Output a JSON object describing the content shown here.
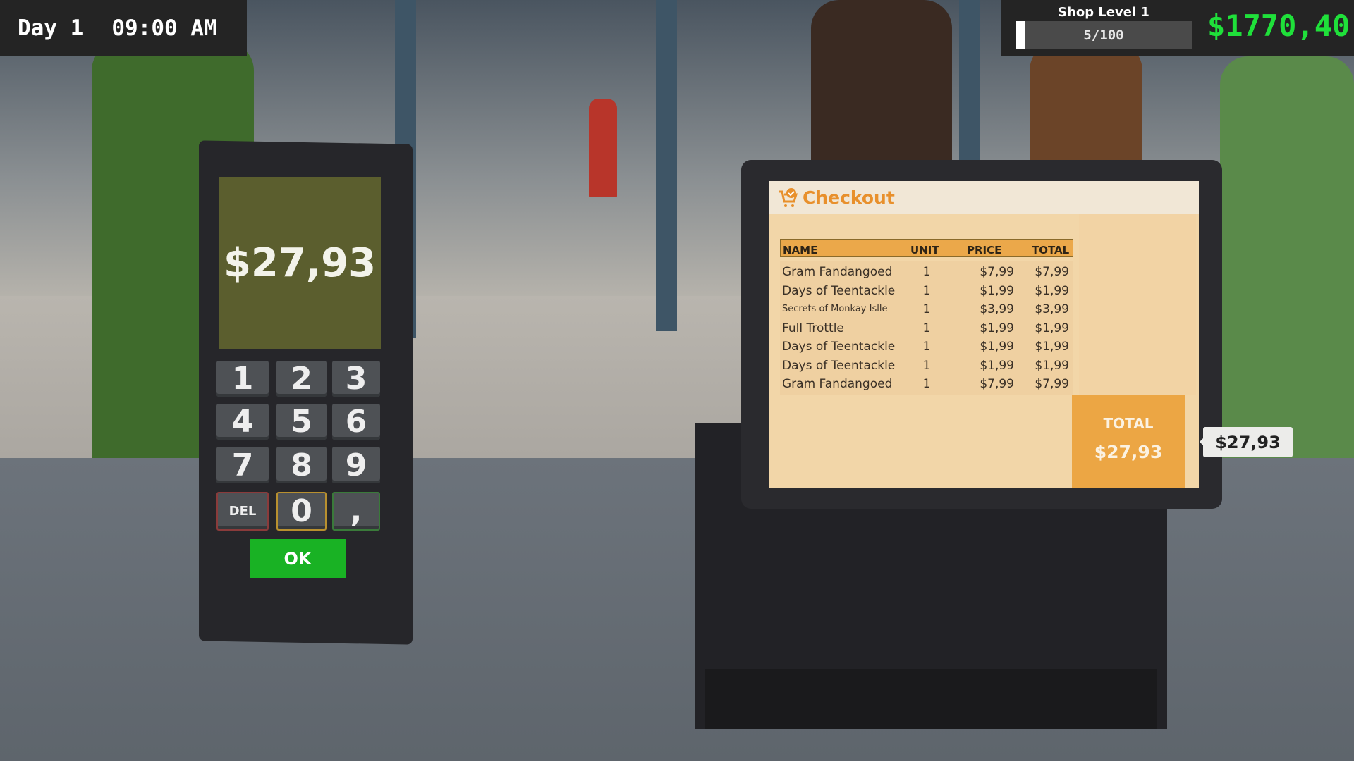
{
  "hud": {
    "day": "Day 1",
    "time": "09:00 AM",
    "shop_level_label": "Shop Level 1",
    "level_progress_text": "5/100",
    "level_progress_fraction": 0.05,
    "money": "$1770,40"
  },
  "terminal": {
    "display": "$27,93",
    "keys": [
      "1",
      "2",
      "3",
      "4",
      "5",
      "6",
      "7",
      "8",
      "9",
      "DEL",
      "0",
      ","
    ],
    "ok_label": "OK"
  },
  "checkout": {
    "title": "Checkout",
    "icon": "cart-check-icon",
    "columns": [
      "NAME",
      "UNIT",
      "PRICE",
      "TOTAL"
    ],
    "rows": [
      [
        "Gram Fandangoed",
        "1",
        "$7,99",
        "$7,99"
      ],
      [
        "Days of Teentackle",
        "1",
        "$1,99",
        "$1,99"
      ],
      [
        "Secrets of Monkay Islle",
        "1",
        "$3,99",
        "$3,99"
      ],
      [
        "Full Trottle",
        "1",
        "$1,99",
        "$1,99"
      ],
      [
        "Days of Teentackle",
        "1",
        "$1,99",
        "$1,99"
      ],
      [
        "Days of Teentackle",
        "1",
        "$1,99",
        "$1,99"
      ],
      [
        "Gram Fandangoed",
        "1",
        "$7,99",
        "$7,99"
      ]
    ],
    "total_label": "TOTAL",
    "total_value": "$27,93"
  },
  "customer_tooltip": "$27,93",
  "colors": {
    "money": "#1fe03a",
    "accent": "#e8902c",
    "ok": "#19b224"
  }
}
